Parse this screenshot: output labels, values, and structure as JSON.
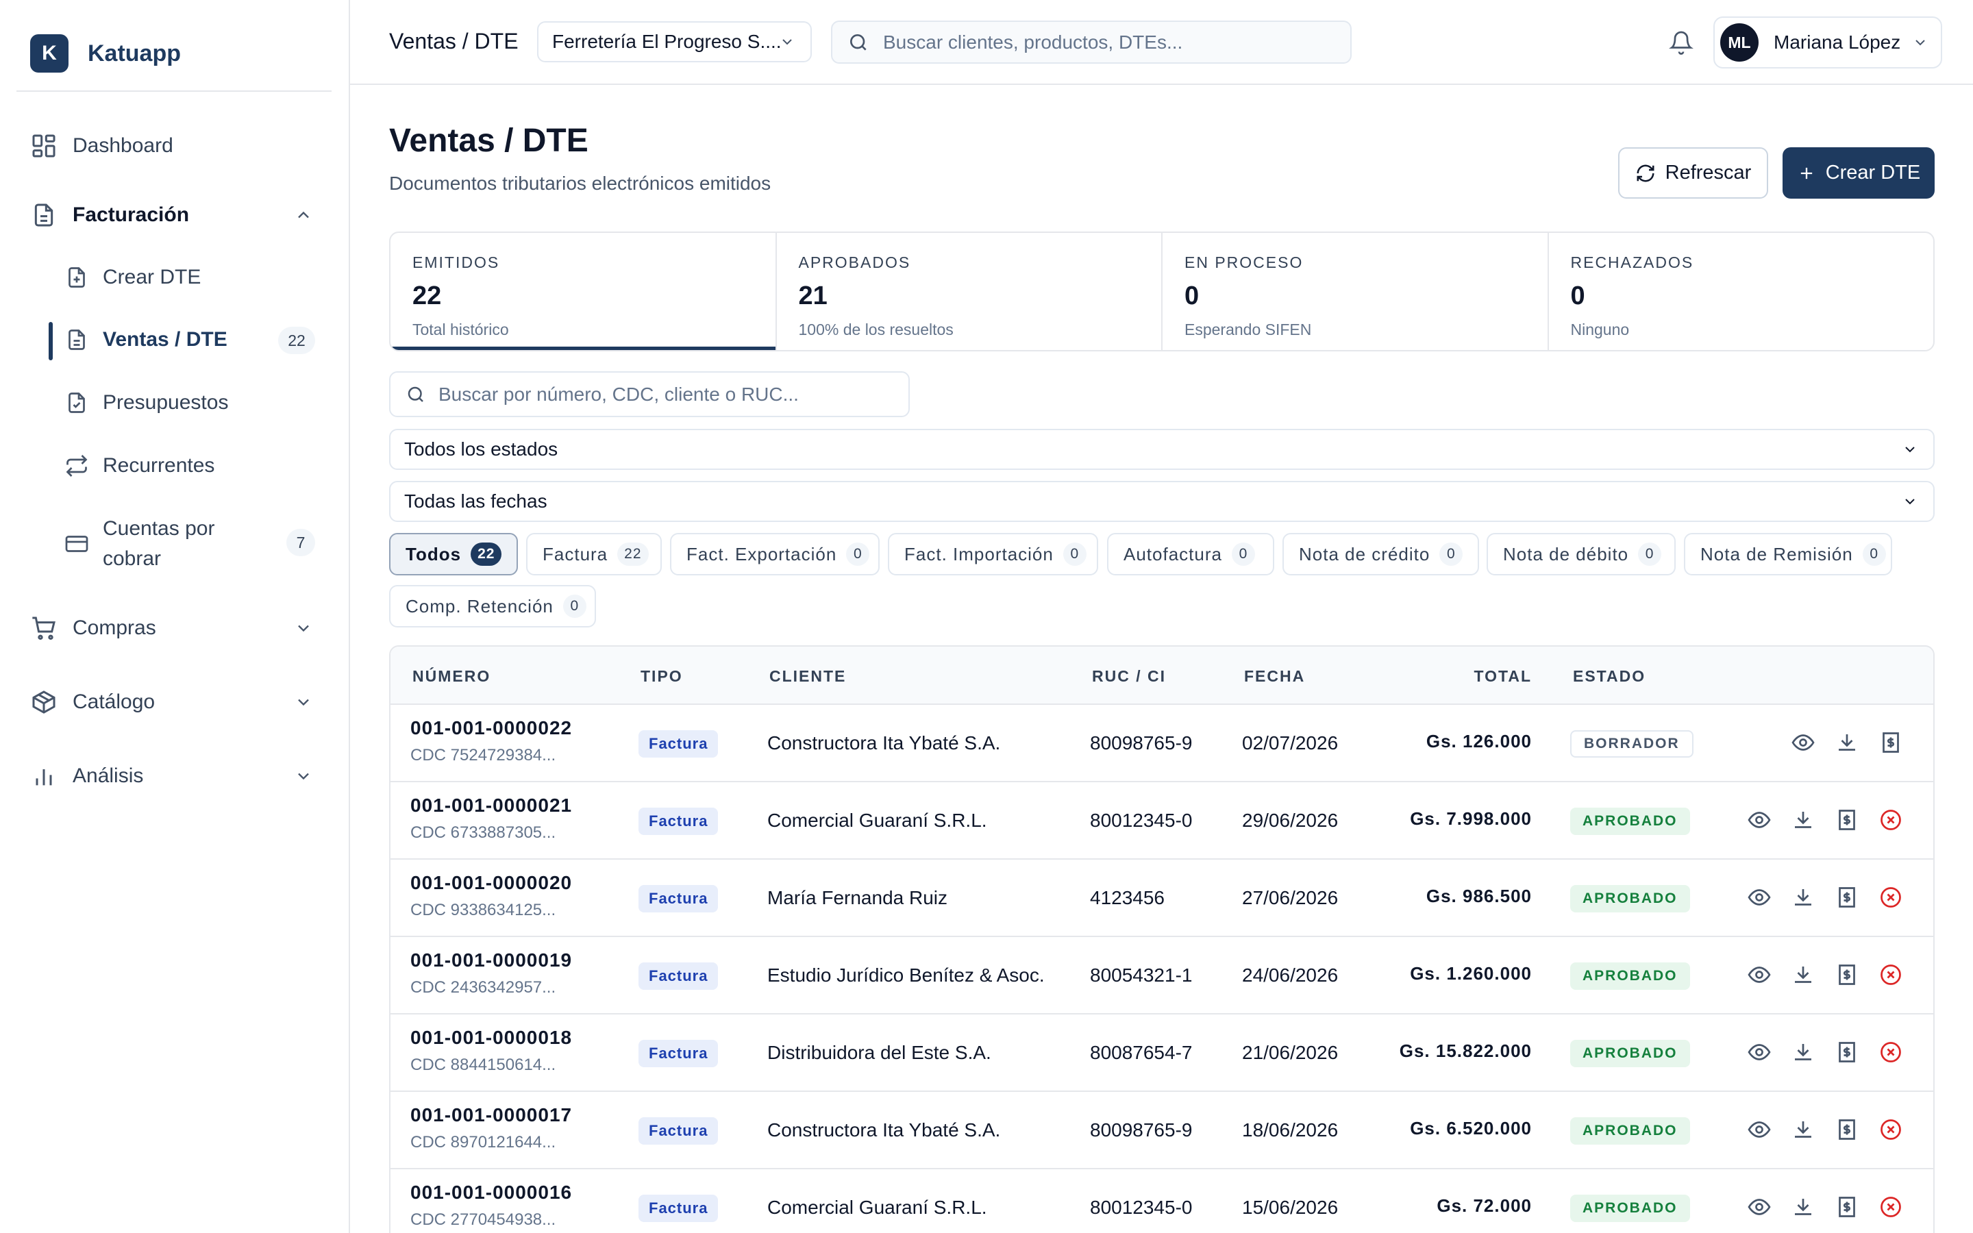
{
  "app": {
    "brand_initial": "K",
    "brand_name": "Katuapp"
  },
  "sidebar": {
    "dashboard": "Dashboard",
    "facturacion": "Facturación",
    "sub": {
      "crear": "Crear DTE",
      "ventas": "Ventas / DTE",
      "ventas_count": "22",
      "presupuestos": "Presupuestos",
      "recurrentes": "Recurrentes",
      "cuentas_l1": "Cuentas por",
      "cuentas_l2": "cobrar",
      "cuentas_count": "7"
    },
    "compras": "Compras",
    "catalogo": "Catálogo",
    "analisis": "Análisis"
  },
  "topbar": {
    "breadcrumb": "Ventas / DTE",
    "company": "Ferretería El Progreso S....",
    "search_placeholder": "Buscar clientes, productos, DTEs...",
    "user_initials": "ML",
    "user_name": "Mariana López"
  },
  "header": {
    "title": "Ventas / DTE",
    "subtitle": "Documentos tributarios electrónicos emitidos",
    "refresh": "Refrescar",
    "create": "Crear DTE"
  },
  "stats": [
    {
      "label": "EMITIDOS",
      "value": "22",
      "sub": "Total histórico"
    },
    {
      "label": "APROBADOS",
      "value": "21",
      "sub": "100% de los resueltos"
    },
    {
      "label": "EN PROCESO",
      "value": "0",
      "sub": "Esperando SIFEN"
    },
    {
      "label": "RECHAZADOS",
      "value": "0",
      "sub": "Ninguno"
    }
  ],
  "filters": {
    "search_placeholder": "Buscar por número, CDC, cliente o RUC...",
    "estado": "Todos los estados",
    "fecha": "Todas las fechas"
  },
  "chips": [
    {
      "label": "Todos",
      "count": "22"
    },
    {
      "label": "Factura",
      "count": "22"
    },
    {
      "label": "Fact. Exportación",
      "count": "0"
    },
    {
      "label": "Fact. Importación",
      "count": "0"
    },
    {
      "label": "Autofactura",
      "count": "0"
    },
    {
      "label": "Nota de crédito",
      "count": "0"
    },
    {
      "label": "Nota de débito",
      "count": "0"
    },
    {
      "label": "Nota de Remisión",
      "count": "0"
    },
    {
      "label": "Comp. Retención",
      "count": "0"
    }
  ],
  "table": {
    "headers": {
      "numero": "NÚMERO",
      "tipo": "TIPO",
      "cliente": "CLIENTE",
      "ruc": "RUC / CI",
      "fecha": "FECHA",
      "total": "TOTAL",
      "estado": "ESTADO"
    },
    "rows": [
      {
        "numero": "001-001-0000022",
        "cdc": "CDC 7524729384...",
        "tipo": "Factura",
        "cliente": "Constructora Ita Ybaté S.A.",
        "ruc": "80098765-9",
        "fecha": "02/07/2026",
        "total": "Gs. 126.000",
        "estado": "BORRADOR"
      },
      {
        "numero": "001-001-0000021",
        "cdc": "CDC 6733887305...",
        "tipo": "Factura",
        "cliente": "Comercial Guaraní S.R.L.",
        "ruc": "80012345-0",
        "fecha": "29/06/2026",
        "total": "Gs. 7.998.000",
        "estado": "APROBADO"
      },
      {
        "numero": "001-001-0000020",
        "cdc": "CDC 9338634125...",
        "tipo": "Factura",
        "cliente": "María Fernanda Ruiz",
        "ruc": "4123456",
        "fecha": "27/06/2026",
        "total": "Gs. 986.500",
        "estado": "APROBADO"
      },
      {
        "numero": "001-001-0000019",
        "cdc": "CDC 2436342957...",
        "tipo": "Factura",
        "cliente": "Estudio Jurídico Benítez & Asoc.",
        "ruc": "80054321-1",
        "fecha": "24/06/2026",
        "total": "Gs. 1.260.000",
        "estado": "APROBADO"
      },
      {
        "numero": "001-001-0000018",
        "cdc": "CDC 8844150614...",
        "tipo": "Factura",
        "cliente": "Distribuidora del Este S.A.",
        "ruc": "80087654-7",
        "fecha": "21/06/2026",
        "total": "Gs. 15.822.000",
        "estado": "APROBADO"
      },
      {
        "numero": "001-001-0000017",
        "cdc": "CDC 8970121644...",
        "tipo": "Factura",
        "cliente": "Constructora Ita Ybaté S.A.",
        "ruc": "80098765-9",
        "fecha": "18/06/2026",
        "total": "Gs. 6.520.000",
        "estado": "APROBADO"
      },
      {
        "numero": "001-001-0000016",
        "cdc": "CDC 2770454938...",
        "tipo": "Factura",
        "cliente": "Comercial Guaraní S.R.L.",
        "ruc": "80012345-0",
        "fecha": "15/06/2026",
        "total": "Gs. 72.000",
        "estado": "APROBADO"
      }
    ]
  },
  "colors": {
    "primary": "#1e3a5f",
    "approved_bg": "#e7f6ec",
    "approved_text": "#15803d",
    "danger": "#dc2626",
    "tipo_bg": "#e8eefb",
    "tipo_text": "#1e40af"
  },
  "icons": [
    "dashboard-grid-icon",
    "document-icon",
    "document-plus-icon",
    "document-check-icon",
    "repeat-icon",
    "credit-card-icon",
    "cart-icon",
    "box-icon",
    "bar-chart-icon",
    "chevron-down-icon",
    "chevron-up-icon",
    "search-icon",
    "bell-icon",
    "refresh-icon",
    "plus-icon",
    "eye-icon",
    "download-icon",
    "receipt-icon",
    "x-circle-icon"
  ]
}
